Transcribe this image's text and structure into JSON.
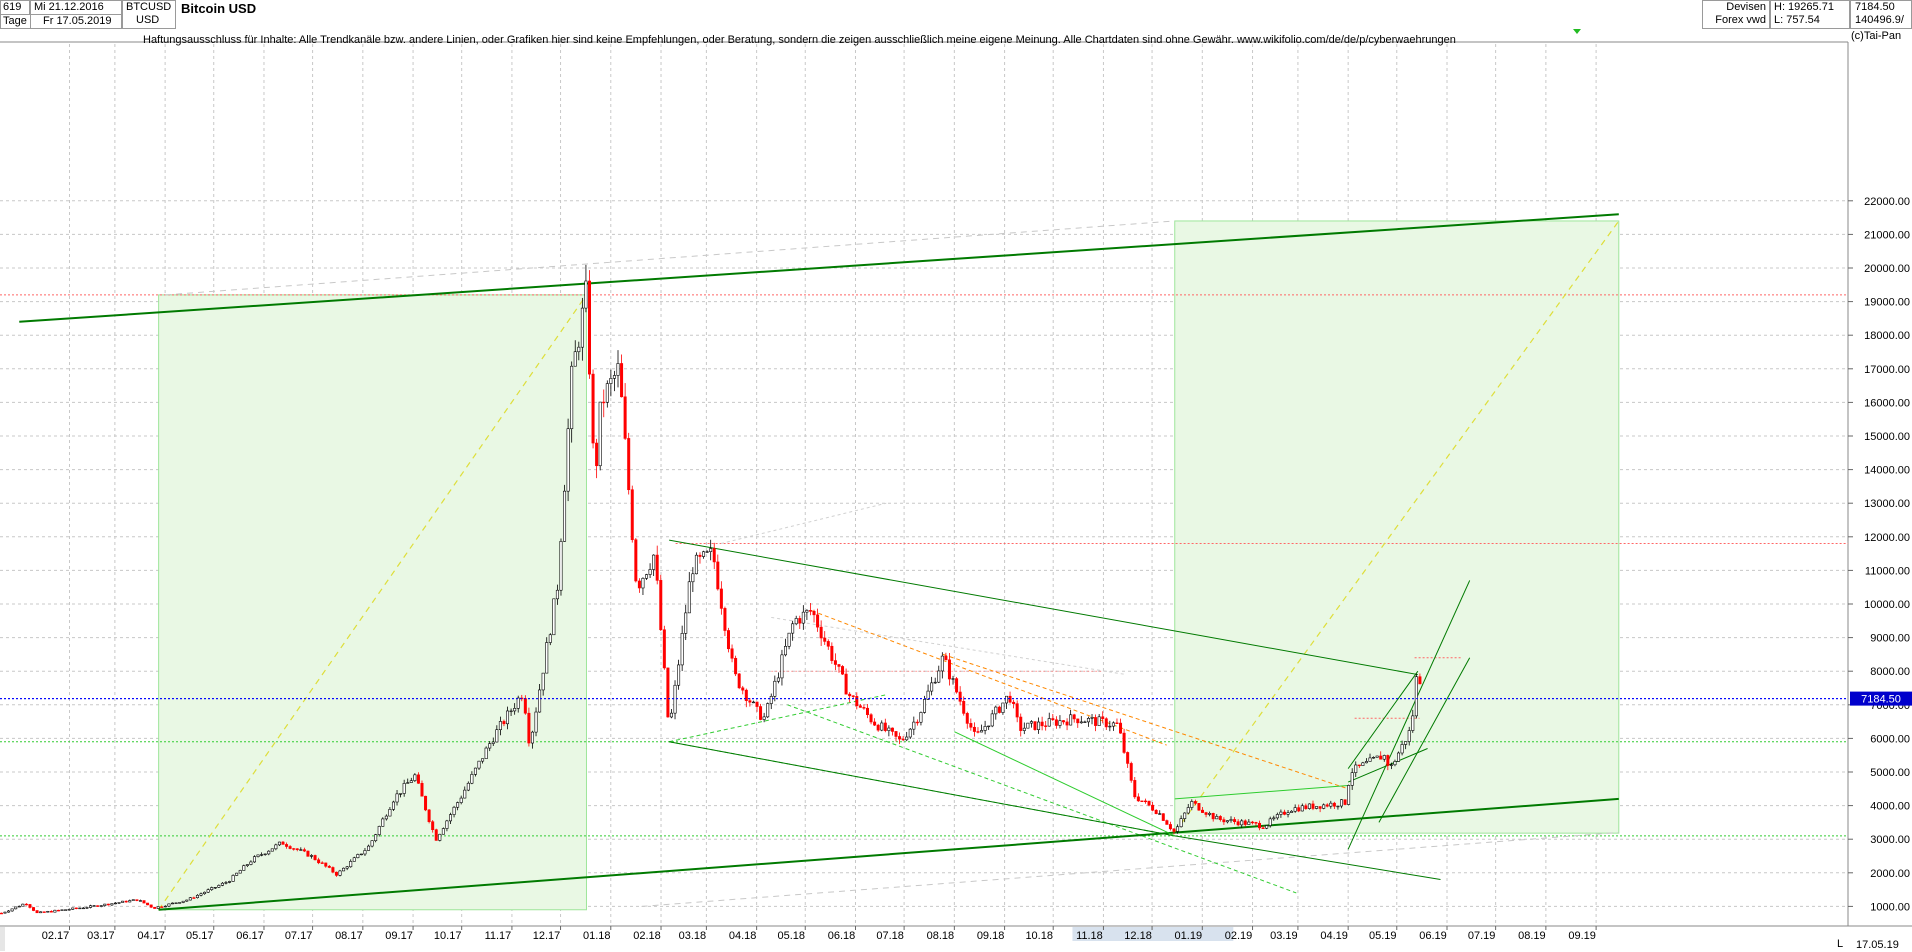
{
  "header": {
    "bar_count": "619",
    "period_from": "Mi 21.12.2016",
    "period_to": "Fr 17.05.2019",
    "interval": "Tage",
    "symbol": "BTCUSD",
    "currency": "USD",
    "title": "Bitcoin USD",
    "exchange_1": "Devisen",
    "exchange_2": "Forex vwd",
    "high": "H: 19265.71",
    "low": "L: 757.54",
    "last": "7184.50",
    "volume": "140496.9/"
  },
  "disclaimer": "Haftungsausschluss für Inhalte: Alle Trendkanäle bzw. andere Linien, oder Grafiken hier sind keine Empfehlungen, oder Beratung, sondern die zeigen ausschließlich meine eigene Meinung. Alle Chartdaten sind ohne Gewähr.  www.wikifolio.com/de/de/p/cyberwaehrungen",
  "copyright": "(c)Tai-Pan",
  "footer": {
    "date": "17.05.19",
    "mode": "L"
  },
  "colors": {
    "up": "#000000",
    "down": "#ff0000",
    "channel": "#007a00",
    "price_line": "#0000ff",
    "price_tag": "#0000cc"
  },
  "chart_data": {
    "type": "candlestick",
    "title": "Bitcoin USD",
    "ylim": [
      800,
      22400
    ],
    "y_ticks": [
      1000,
      2000,
      3000,
      4000,
      5000,
      6000,
      7000,
      8000,
      9000,
      10000,
      11000,
      12000,
      13000,
      14000,
      15000,
      16000,
      17000,
      18000,
      19000,
      20000,
      21000,
      22000
    ],
    "y_tick_labels": [
      "1000.00",
      "2000.00",
      "3000.00",
      "4000.00",
      "5000.00",
      "6000.00",
      "7000.00",
      "8000.00",
      "9000.00",
      "10000.00",
      "11000.00",
      "12000.00",
      "13000.00",
      "14000.00",
      "15000.00",
      "16000.00",
      "17000.00",
      "18000.00",
      "19000.00",
      "20000.00",
      "21000.00",
      "22000.00"
    ],
    "x_ticks": [
      "02.17",
      "03.17",
      "04.17",
      "05.17",
      "06.17",
      "07.17",
      "08.17",
      "09.17",
      "10.17",
      "11.17",
      "12.17",
      "01.18",
      "02.18",
      "03.18",
      "04.18",
      "05.18",
      "06.18",
      "07.18",
      "08.18",
      "09.18",
      "10.18",
      "11.18",
      "12.18",
      "01.19",
      "02.19",
      "03.19",
      "04.19",
      "05.19",
      "06.19",
      "07.19",
      "08.19",
      "09.19"
    ],
    "highlighted_x_range": [
      "11.18",
      "01.19"
    ],
    "last_price": 7184.5,
    "last_price_label": "7184.50",
    "price_path": [
      [
        "2016-12-21",
        800
      ],
      [
        "2017-01-05",
        1100
      ],
      [
        "2017-01-12",
        800
      ],
      [
        "2017-02-15",
        1000
      ],
      [
        "2017-03-15",
        1200
      ],
      [
        "2017-03-25",
        950
      ],
      [
        "2017-04-15",
        1200
      ],
      [
        "2017-05-10",
        1750
      ],
      [
        "2017-05-25",
        2400
      ],
      [
        "2017-06-12",
        2900
      ],
      [
        "2017-06-30",
        2500
      ],
      [
        "2017-07-16",
        1950
      ],
      [
        "2017-08-05",
        2800
      ],
      [
        "2017-08-20",
        4200
      ],
      [
        "2017-09-02",
        4900
      ],
      [
        "2017-09-15",
        3000
      ],
      [
        "2017-10-01",
        4300
      ],
      [
        "2017-10-20",
        6000
      ],
      [
        "2017-11-08",
        7400
      ],
      [
        "2017-11-12",
        5800
      ],
      [
        "2017-11-29",
        10500
      ],
      [
        "2017-12-08",
        16800
      ],
      [
        "2017-12-17",
        19265
      ],
      [
        "2017-12-22",
        13500
      ],
      [
        "2017-12-26",
        16000
      ],
      [
        "2018-01-06",
        17000
      ],
      [
        "2018-01-17",
        10500
      ],
      [
        "2018-01-28",
        11500
      ],
      [
        "2018-02-06",
        6200
      ],
      [
        "2018-02-20",
        11100
      ],
      [
        "2018-03-05",
        11500
      ],
      [
        "2018-03-18",
        7900
      ],
      [
        "2018-04-01",
        6800
      ],
      [
        "2018-04-06",
        6600
      ],
      [
        "2018-04-24",
        9500
      ],
      [
        "2018-05-05",
        9800
      ],
      [
        "2018-05-28",
        7300
      ],
      [
        "2018-06-12",
        6500
      ],
      [
        "2018-06-29",
        5900
      ],
      [
        "2018-07-10",
        6700
      ],
      [
        "2018-07-25",
        8400
      ],
      [
        "2018-08-14",
        6000
      ],
      [
        "2018-09-04",
        7300
      ],
      [
        "2018-09-10",
        6300
      ],
      [
        "2018-10-15",
        6600
      ],
      [
        "2018-11-10",
        6400
      ],
      [
        "2018-11-20",
        4300
      ],
      [
        "2018-12-05",
        3800
      ],
      [
        "2018-12-15",
        3200
      ],
      [
        "2018-12-25",
        4100
      ],
      [
        "2019-01-10",
        3600
      ],
      [
        "2019-02-08",
        3400
      ],
      [
        "2019-02-24",
        3900
      ],
      [
        "2019-03-31",
        4100
      ],
      [
        "2019-04-02",
        5000
      ],
      [
        "2019-04-23",
        5500
      ],
      [
        "2019-04-27",
        5100
      ],
      [
        "2019-05-10",
        6300
      ],
      [
        "2019-05-14",
        8200
      ],
      [
        "2019-05-17",
        7184.5
      ]
    ],
    "horizontal_levels": [
      {
        "value": 19200,
        "style": "dotted",
        "color": "#ff6666"
      },
      {
        "value": 11800,
        "style": "dotted",
        "color": "#ff6666"
      },
      {
        "value": 5900,
        "style": "dotted",
        "color": "#33cc33"
      },
      {
        "value": 3100,
        "style": "dotted",
        "color": "#33cc33"
      },
      {
        "value": 7184.5,
        "style": "dotted",
        "color": "#0000ff"
      }
    ]
  }
}
